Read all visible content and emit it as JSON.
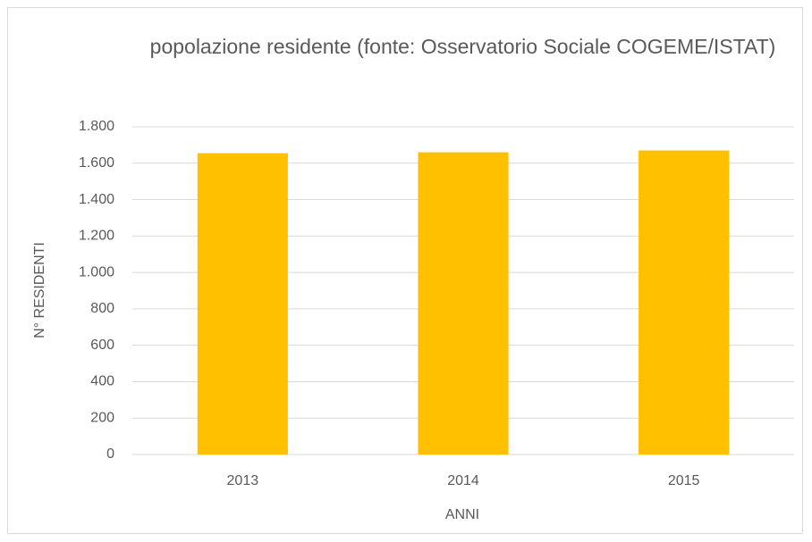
{
  "chart_data": {
    "type": "bar",
    "title": "popolazione residente (fonte: Osservatorio Sociale COGEME/ISTAT)",
    "x_label": "ANNI",
    "y_label": "N° RESIDENTI",
    "categories": [
      "2013",
      "2014",
      "2015"
    ],
    "values": [
      1655,
      1660,
      1670
    ],
    "color": "#ffc000",
    "ylim": [
      0,
      1800
    ],
    "yticks": [
      0,
      200,
      400,
      600,
      800,
      {
        "value": 1000,
        "label": "1.000"
      },
      {
        "value": 1200,
        "label": "1.200"
      },
      {
        "value": 1400,
        "label": "1.400"
      },
      {
        "value": 1600,
        "label": "1.600"
      },
      {
        "value": 1800,
        "label": "1.800"
      }
    ],
    "grid": true
  }
}
